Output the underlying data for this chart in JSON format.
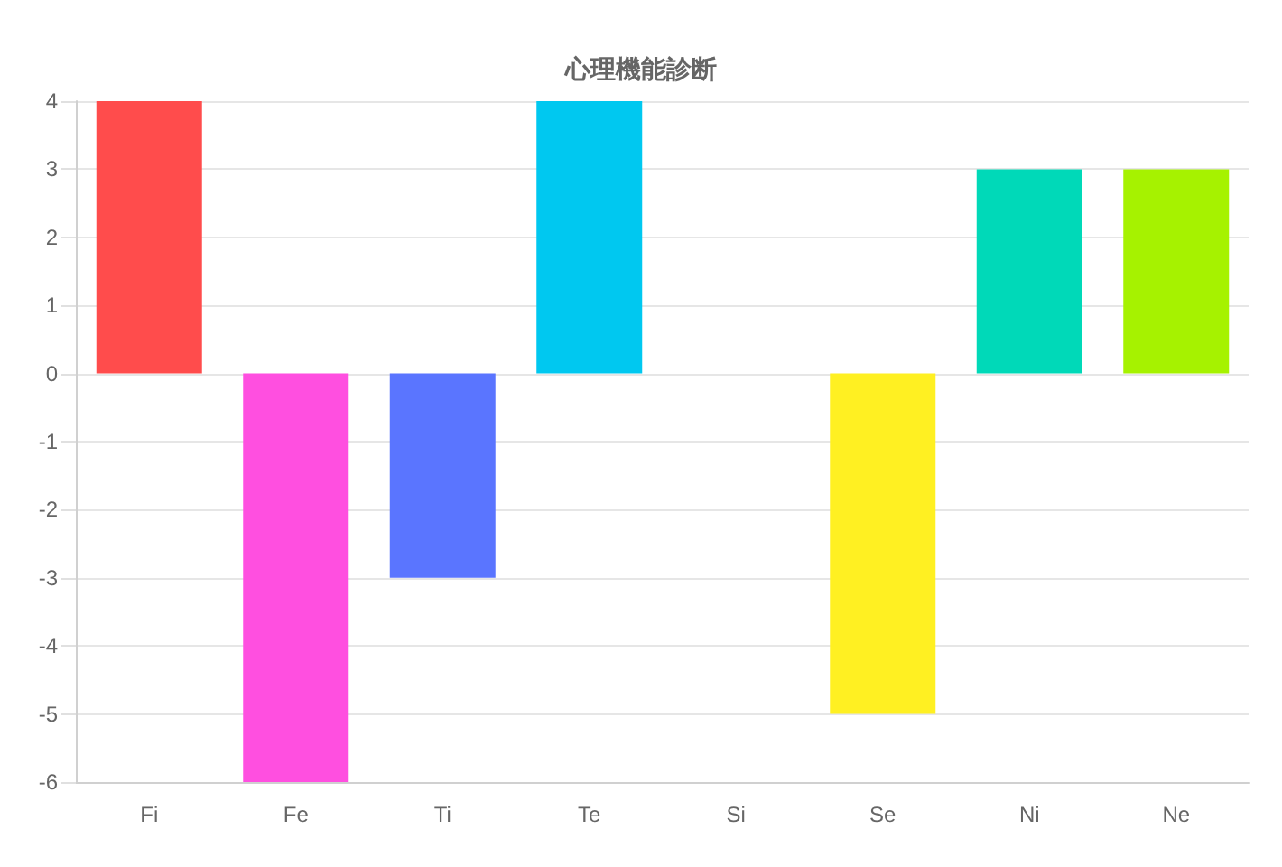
{
  "chart_data": {
    "type": "bar",
    "title": "心理機能診断",
    "categories": [
      "Fi",
      "Fe",
      "Ti",
      "Te",
      "Si",
      "Se",
      "Ni",
      "Ne"
    ],
    "values": [
      4,
      -6,
      -3,
      4,
      0,
      -5,
      3,
      3
    ],
    "colors": [
      "#ff4c4c",
      "#ff4fe0",
      "#5a75ff",
      "#00c8f0",
      null,
      "#fff022",
      "#00d9b8",
      "#a6f200"
    ],
    "ylim": [
      -6,
      4
    ],
    "yticks": [
      -6,
      -5,
      -4,
      -3,
      -2,
      -1,
      0,
      1,
      2,
      3,
      4
    ],
    "grid": "y"
  }
}
